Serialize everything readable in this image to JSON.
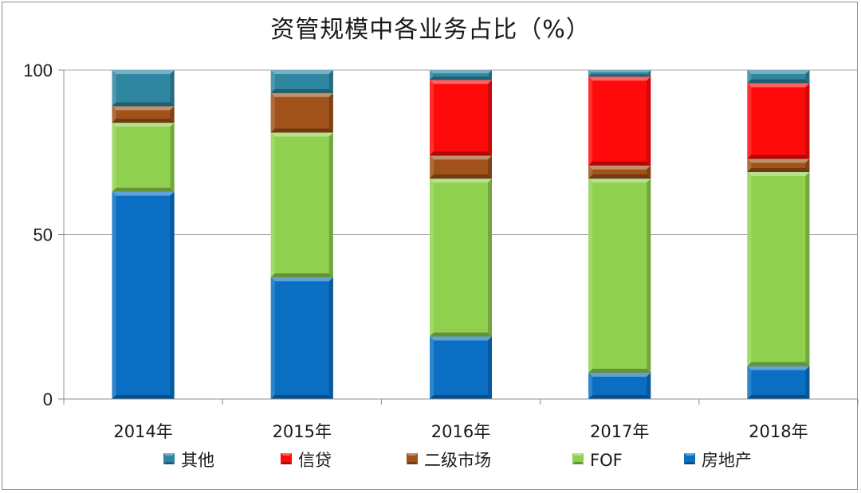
{
  "chart_data": {
    "type": "bar",
    "stacked": true,
    "title": "资管规模中各业务占比（%）",
    "xlabel": "",
    "ylabel": "",
    "ylim": [
      0,
      100
    ],
    "yticks": [
      "0",
      "50",
      "100"
    ],
    "grid": true,
    "legend_position": "bottom",
    "categories": [
      "2014年",
      "2015年",
      "2016年",
      "2017年",
      "2018年"
    ],
    "series": [
      {
        "name": "房地产",
        "color": "#0a6fc2",
        "values": [
          63,
          37,
          19,
          8,
          10
        ]
      },
      {
        "name": "FOF",
        "color": "#8fd14f",
        "values": [
          21,
          44,
          48,
          59,
          59
        ]
      },
      {
        "name": "二级市场",
        "color": "#a0521a",
        "values": [
          5,
          12,
          7,
          4,
          4
        ]
      },
      {
        "name": "信贷",
        "color": "#ff0a0a",
        "values": [
          0,
          0,
          23,
          27,
          23
        ]
      },
      {
        "name": "其他",
        "color": "#2f86a0",
        "values": [
          11,
          7,
          3,
          2,
          4
        ]
      }
    ],
    "legend_order": [
      "其他",
      "信贷",
      "二级市场",
      "FOF",
      "房地产"
    ]
  }
}
